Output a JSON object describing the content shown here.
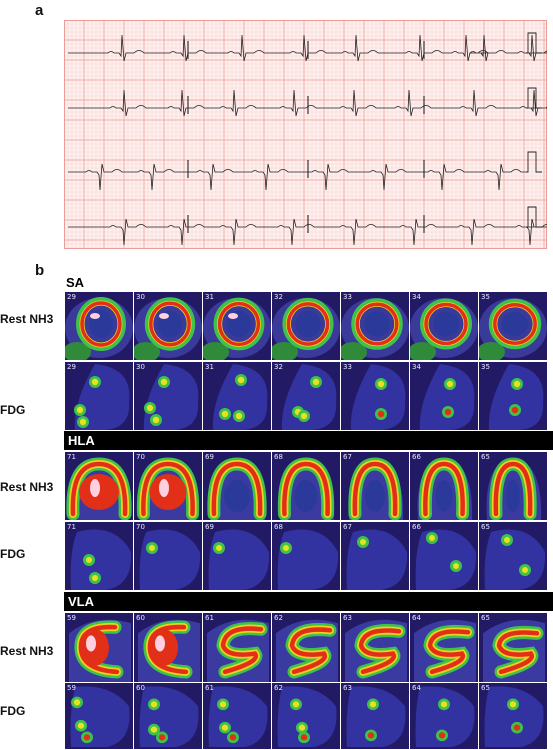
{
  "panel_a": {
    "letter": "a"
  },
  "panel_b": {
    "letter": "b",
    "sections": [
      {
        "header": "SA",
        "rows": [
          {
            "label": "Rest NH3",
            "type": "rest",
            "view": "sa",
            "numbers": [
              "29",
              "30",
              "31",
              "32",
              "33",
              "34",
              "35"
            ]
          },
          {
            "label": "FDG",
            "type": "fdg",
            "view": "sa",
            "numbers": [
              "29",
              "30",
              "31",
              "32",
              "33",
              "34",
              "35"
            ]
          }
        ]
      },
      {
        "header": "HLA",
        "rows": [
          {
            "label": "Rest NH3",
            "type": "rest",
            "view": "hla",
            "numbers": [
              "71",
              "70",
              "69",
              "68",
              "67",
              "66",
              "65"
            ]
          },
          {
            "label": "FDG",
            "type": "fdg",
            "view": "hla",
            "numbers": [
              "71",
              "70",
              "69",
              "68",
              "67",
              "66",
              "65"
            ]
          }
        ]
      },
      {
        "header": "VLA",
        "rows": [
          {
            "label": "Rest NH3",
            "type": "rest",
            "view": "vla",
            "numbers": [
              "59",
              "60",
              "61",
              "62",
              "63",
              "64",
              "65"
            ]
          },
          {
            "label": "FDG",
            "type": "fdg",
            "view": "vla",
            "numbers": [
              "59",
              "60",
              "61",
              "62",
              "63",
              "64",
              "65"
            ]
          }
        ]
      }
    ]
  },
  "colors": {
    "ecg_paper": "#fdf0ee",
    "ecg_minor_grid": "#f6c9c4",
    "ecg_major_grid": "#eb9c96",
    "ecg_trace": "#222222",
    "scan_background": "#231a66"
  }
}
